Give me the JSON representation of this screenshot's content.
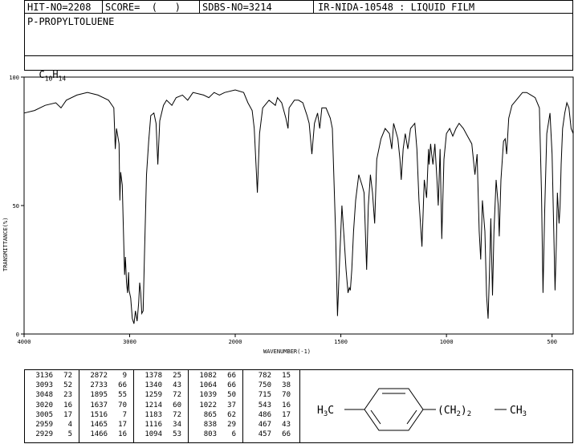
{
  "header": {
    "hit_no": "HIT-NO=2208",
    "score": "SCORE=  (   )",
    "sdbs_no": "SDBS-NO=3214",
    "ir_info": "IR-NIDA-10548 : LIQUID FILM"
  },
  "compound": {
    "name": "P-PROPYLTOLUENE",
    "formula_prefix": "C",
    "formula_sub1": "10",
    "formula_mid": "H",
    "formula_sub2": "14"
  },
  "chart_data": {
    "type": "line",
    "xlabel": "WAVENUMBER(-1)",
    "ylabel": "TRANSMITTANCE(%)",
    "xlim": [
      4000,
      400
    ],
    "ylim": [
      0,
      100
    ],
    "x_ticks": [
      4000,
      3000,
      2000,
      1500,
      1000,
      500
    ],
    "y_ticks": [
      0,
      50,
      100
    ],
    "grid": false,
    "series": [
      {
        "points": [
          [
            4000,
            86
          ],
          [
            3900,
            87
          ],
          [
            3800,
            89
          ],
          [
            3700,
            90
          ],
          [
            3650,
            88
          ],
          [
            3600,
            91
          ],
          [
            3500,
            93
          ],
          [
            3400,
            94
          ],
          [
            3300,
            93
          ],
          [
            3200,
            91
          ],
          [
            3150,
            88
          ],
          [
            3136,
            72
          ],
          [
            3125,
            80
          ],
          [
            3100,
            74
          ],
          [
            3093,
            52
          ],
          [
            3085,
            63
          ],
          [
            3070,
            58
          ],
          [
            3060,
            42
          ],
          [
            3048,
            23
          ],
          [
            3040,
            30
          ],
          [
            3030,
            20
          ],
          [
            3020,
            16
          ],
          [
            3010,
            24
          ],
          [
            3005,
            17
          ],
          [
            2990,
            14
          ],
          [
            2975,
            6
          ],
          [
            2959,
            4
          ],
          [
            2945,
            9
          ],
          [
            2929,
            5
          ],
          [
            2915,
            12
          ],
          [
            2905,
            20
          ],
          [
            2895,
            16
          ],
          [
            2885,
            8
          ],
          [
            2872,
            9
          ],
          [
            2860,
            30
          ],
          [
            2840,
            62
          ],
          [
            2820,
            75
          ],
          [
            2800,
            85
          ],
          [
            2770,
            86
          ],
          [
            2750,
            82
          ],
          [
            2733,
            66
          ],
          [
            2715,
            83
          ],
          [
            2680,
            89
          ],
          [
            2650,
            91
          ],
          [
            2600,
            89
          ],
          [
            2560,
            92
          ],
          [
            2500,
            93
          ],
          [
            2450,
            91
          ],
          [
            2400,
            94
          ],
          [
            2300,
            93
          ],
          [
            2250,
            92
          ],
          [
            2200,
            94
          ],
          [
            2150,
            93
          ],
          [
            2100,
            94
          ],
          [
            2000,
            95
          ],
          [
            1960,
            94
          ],
          [
            1940,
            90
          ],
          [
            1920,
            87
          ],
          [
            1910,
            80
          ],
          [
            1895,
            55
          ],
          [
            1885,
            78
          ],
          [
            1870,
            88
          ],
          [
            1840,
            91
          ],
          [
            1810,
            89
          ],
          [
            1800,
            92
          ],
          [
            1780,
            90
          ],
          [
            1760,
            84
          ],
          [
            1750,
            80
          ],
          [
            1745,
            88
          ],
          [
            1720,
            91
          ],
          [
            1700,
            91
          ],
          [
            1680,
            90
          ],
          [
            1660,
            85
          ],
          [
            1650,
            82
          ],
          [
            1637,
            70
          ],
          [
            1625,
            82
          ],
          [
            1610,
            86
          ],
          [
            1600,
            80
          ],
          [
            1590,
            88
          ],
          [
            1570,
            88
          ],
          [
            1550,
            84
          ],
          [
            1540,
            80
          ],
          [
            1525,
            40
          ],
          [
            1516,
            7
          ],
          [
            1505,
            30
          ],
          [
            1495,
            50
          ],
          [
            1485,
            38
          ],
          [
            1475,
            25
          ],
          [
            1466,
            16
          ],
          [
            1460,
            18
          ],
          [
            1455,
            17
          ],
          [
            1448,
            25
          ],
          [
            1440,
            40
          ],
          [
            1430,
            52
          ],
          [
            1415,
            62
          ],
          [
            1400,
            58
          ],
          [
            1390,
            55
          ],
          [
            1378,
            25
          ],
          [
            1370,
            50
          ],
          [
            1360,
            62
          ],
          [
            1350,
            55
          ],
          [
            1340,
            43
          ],
          [
            1330,
            68
          ],
          [
            1310,
            76
          ],
          [
            1290,
            80
          ],
          [
            1270,
            78
          ],
          [
            1259,
            72
          ],
          [
            1250,
            82
          ],
          [
            1230,
            76
          ],
          [
            1220,
            68
          ],
          [
            1214,
            60
          ],
          [
            1205,
            72
          ],
          [
            1195,
            78
          ],
          [
            1183,
            72
          ],
          [
            1170,
            80
          ],
          [
            1150,
            82
          ],
          [
            1140,
            72
          ],
          [
            1130,
            52
          ],
          [
            1116,
            34
          ],
          [
            1105,
            60
          ],
          [
            1094,
            53
          ],
          [
            1085,
            72
          ],
          [
            1082,
            66
          ],
          [
            1075,
            74
          ],
          [
            1070,
            70
          ],
          [
            1064,
            66
          ],
          [
            1055,
            74
          ],
          [
            1045,
            60
          ],
          [
            1039,
            50
          ],
          [
            1030,
            72
          ],
          [
            1022,
            37
          ],
          [
            1012,
            68
          ],
          [
            1000,
            78
          ],
          [
            985,
            80
          ],
          [
            970,
            77
          ],
          [
            955,
            80
          ],
          [
            940,
            82
          ],
          [
            920,
            80
          ],
          [
            900,
            77
          ],
          [
            880,
            74
          ],
          [
            865,
            62
          ],
          [
            855,
            70
          ],
          [
            845,
            40
          ],
          [
            838,
            29
          ],
          [
            830,
            52
          ],
          [
            818,
            40
          ],
          [
            810,
            15
          ],
          [
            803,
            6
          ],
          [
            796,
            25
          ],
          [
            790,
            45
          ],
          [
            782,
            15
          ],
          [
            775,
            40
          ],
          [
            765,
            60
          ],
          [
            755,
            50
          ],
          [
            750,
            38
          ],
          [
            742,
            60
          ],
          [
            730,
            75
          ],
          [
            722,
            76
          ],
          [
            715,
            70
          ],
          [
            705,
            84
          ],
          [
            690,
            89
          ],
          [
            670,
            91
          ],
          [
            650,
            93
          ],
          [
            640,
            94
          ],
          [
            620,
            94
          ],
          [
            600,
            93
          ],
          [
            580,
            92
          ],
          [
            560,
            88
          ],
          [
            550,
            55
          ],
          [
            543,
            16
          ],
          [
            535,
            48
          ],
          [
            525,
            78
          ],
          [
            510,
            86
          ],
          [
            500,
            70
          ],
          [
            492,
            40
          ],
          [
            486,
            17
          ],
          [
            480,
            35
          ],
          [
            475,
            55
          ],
          [
            467,
            43
          ],
          [
            462,
            50
          ],
          [
            457,
            66
          ],
          [
            450,
            80
          ],
          [
            440,
            86
          ],
          [
            430,
            90
          ],
          [
            420,
            88
          ],
          [
            410,
            80
          ],
          [
            400,
            78
          ]
        ]
      }
    ]
  },
  "peak_table": {
    "columns": [
      [
        [
          "3136",
          "72"
        ],
        [
          "3093",
          "52"
        ],
        [
          "3048",
          "23"
        ],
        [
          "3020",
          "16"
        ],
        [
          "3005",
          "17"
        ],
        [
          "2959",
          "4"
        ],
        [
          "2929",
          "5"
        ]
      ],
      [
        [
          "2872",
          "9"
        ],
        [
          "2733",
          "66"
        ],
        [
          "1895",
          "55"
        ],
        [
          "1637",
          "70"
        ],
        [
          "1516",
          "7"
        ],
        [
          "1465",
          "17"
        ],
        [
          "1466",
          "16"
        ]
      ],
      [
        [
          "1378",
          "25"
        ],
        [
          "1340",
          "43"
        ],
        [
          "1259",
          "72"
        ],
        [
          "1214",
          "60"
        ],
        [
          "1183",
          "72"
        ],
        [
          "1116",
          "34"
        ],
        [
          "1094",
          "53"
        ]
      ],
      [
        [
          "1082",
          "66"
        ],
        [
          "1064",
          "66"
        ],
        [
          "1039",
          "50"
        ],
        [
          "1022",
          "37"
        ],
        [
          "865",
          "62"
        ],
        [
          "838",
          "29"
        ],
        [
          "803",
          "6"
        ]
      ],
      [
        [
          "782",
          "15"
        ],
        [
          "750",
          "38"
        ],
        [
          "715",
          "70"
        ],
        [
          "543",
          "16"
        ],
        [
          "486",
          "17"
        ],
        [
          "467",
          "43"
        ],
        [
          "457",
          "66"
        ]
      ]
    ]
  },
  "structure": {
    "left_group": "H3C",
    "right_chain": "(CH2)2",
    "right_end": "CH3"
  }
}
